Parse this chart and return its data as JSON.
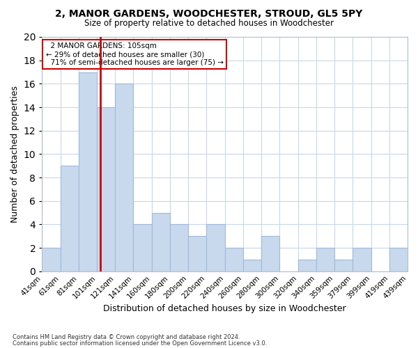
{
  "title": "2, MANOR GARDENS, WOODCHESTER, STROUD, GL5 5PY",
  "subtitle": "Size of property relative to detached houses in Woodchester",
  "xlabel": "Distribution of detached houses by size in Woodchester",
  "ylabel": "Number of detached properties",
  "bar_labels": [
    "41sqm",
    "61sqm",
    "81sqm",
    "101sqm",
    "121sqm",
    "141sqm",
    "160sqm",
    "180sqm",
    "200sqm",
    "220sqm",
    "240sqm",
    "260sqm",
    "280sqm",
    "300sqm",
    "320sqm",
    "340sqm",
    "359sqm",
    "379sqm",
    "399sqm",
    "419sqm",
    "439sqm"
  ],
  "bar_values": [
    2,
    9,
    17,
    14,
    16,
    4,
    5,
    4,
    3,
    4,
    2,
    1,
    3,
    0,
    1,
    2,
    1,
    2,
    0,
    2
  ],
  "bar_color": "#c8d9ed",
  "bar_edge_color": "#a0b8d8",
  "property_line_label": "2 MANOR GARDENS: 105sqm",
  "pct_smaller": "29% of detached houses are smaller (30)",
  "pct_larger": "71% of semi-detached houses are larger (75)",
  "line_color": "#cc0000",
  "ylim": [
    0,
    20
  ],
  "yticks": [
    0,
    2,
    4,
    6,
    8,
    10,
    12,
    14,
    16,
    18,
    20
  ],
  "footnote1": "Contains HM Land Registry data © Crown copyright and database right 2024.",
  "footnote2": "Contains public sector information licensed under the Open Government Licence v3.0.",
  "bg_color": "#ffffff",
  "grid_color": "#c8d8e8"
}
